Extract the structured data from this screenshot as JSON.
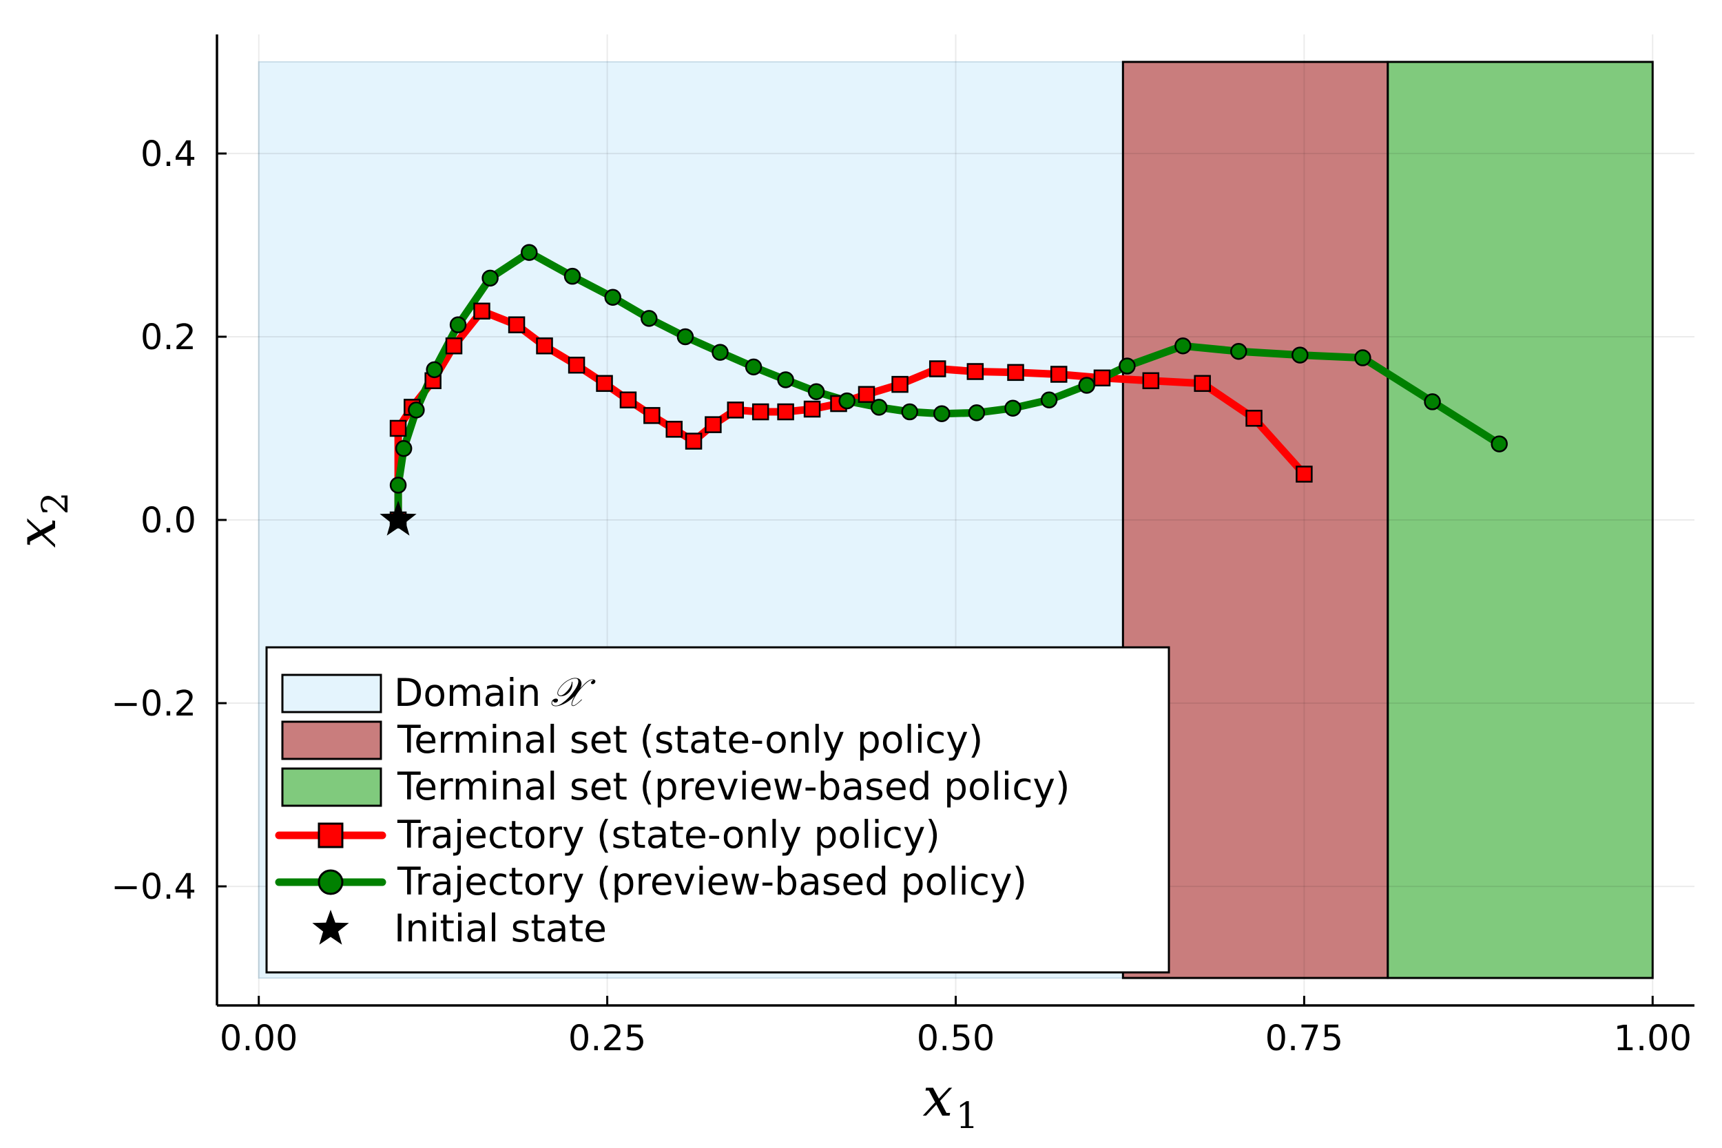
{
  "chart_data": {
    "type": "line",
    "xlabel": "x",
    "xlabel_sub": "1",
    "ylabel": "x",
    "ylabel_sub": "2",
    "xlim": [
      -0.03,
      1.03
    ],
    "ylim": [
      -0.53,
      0.53
    ],
    "xticks": [
      0,
      0.25,
      0.5,
      0.75,
      1.0
    ],
    "yticks": [
      -0.4,
      -0.2,
      0.0,
      0.2,
      0.4
    ],
    "xtick_labels": [
      "0.00",
      "0.25",
      "0.50",
      "0.75",
      "1.00"
    ],
    "ytick_labels": [
      "−0.4",
      "−0.2",
      "0.0",
      "0.2",
      "0.4"
    ],
    "grid": true,
    "legend_position": "bottom-left",
    "regions": [
      {
        "name": "Domain",
        "math": "𝒳",
        "x": [
          0.0,
          1.0
        ],
        "y": [
          -0.5,
          0.5
        ],
        "color": "#e4f4fd",
        "edge": "#c9dde9"
      },
      {
        "name": "Terminal set (state-only policy)",
        "x": [
          0.62,
          0.81
        ],
        "y": [
          -0.5,
          0.5
        ],
        "color": "#c97d7d",
        "edge": "#000000"
      },
      {
        "name": "Terminal set (preview-based policy)",
        "x": [
          0.81,
          1.0
        ],
        "y": [
          -0.5,
          0.5
        ],
        "color": "#80ca7d",
        "edge": "#000000"
      }
    ],
    "series": [
      {
        "name": "Trajectory (state-only policy)",
        "color": "#ff0000",
        "marker": "square",
        "x": [
          0.1,
          0.1,
          0.11,
          0.125,
          0.14,
          0.16,
          0.185,
          0.205,
          0.228,
          0.248,
          0.265,
          0.282,
          0.298,
          0.312,
          0.326,
          0.342,
          0.36,
          0.378,
          0.397,
          0.416,
          0.436,
          0.46,
          0.487,
          0.514,
          0.543,
          0.574,
          0.605,
          0.64,
          0.677,
          0.714,
          0.75
        ],
        "y": [
          0.0,
          0.1,
          0.123,
          0.152,
          0.19,
          0.228,
          0.213,
          0.19,
          0.169,
          0.149,
          0.131,
          0.114,
          0.099,
          0.086,
          0.104,
          0.12,
          0.118,
          0.118,
          0.121,
          0.127,
          0.137,
          0.148,
          0.165,
          0.162,
          0.161,
          0.159,
          0.155,
          0.152,
          0.149,
          0.111,
          0.05
        ]
      },
      {
        "name": "Trajectory (preview-based policy)",
        "color": "#008000",
        "marker": "circle",
        "x": [
          0.1,
          0.1,
          0.104,
          0.113,
          0.126,
          0.143,
          0.166,
          0.194,
          0.225,
          0.254,
          0.28,
          0.306,
          0.331,
          0.355,
          0.378,
          0.4,
          0.422,
          0.445,
          0.467,
          0.49,
          0.515,
          0.541,
          0.567,
          0.594,
          0.623,
          0.663,
          0.703,
          0.747,
          0.792,
          0.842,
          0.89
        ],
        "y": [
          0.0,
          0.038,
          0.078,
          0.12,
          0.164,
          0.213,
          0.264,
          0.292,
          0.266,
          0.243,
          0.22,
          0.2,
          0.183,
          0.167,
          0.153,
          0.14,
          0.13,
          0.123,
          0.118,
          0.116,
          0.117,
          0.122,
          0.131,
          0.147,
          0.168,
          0.19,
          0.184,
          0.18,
          0.177,
          0.129,
          0.083
        ]
      }
    ],
    "points": [
      {
        "name": "Initial state",
        "x": 0.1,
        "y": 0.0,
        "marker": "star",
        "color": "#000000"
      }
    ]
  },
  "legend": {
    "domain_label": "Domain",
    "domain_math": "𝒳",
    "terminal_state_label": "Terminal set (state-only policy)",
    "terminal_preview_label": "Terminal set (preview-based policy)",
    "traj_state_label": "Trajectory (state-only policy)",
    "traj_preview_label": "Trajectory (preview-based policy)",
    "initial_label": "Initial state"
  }
}
